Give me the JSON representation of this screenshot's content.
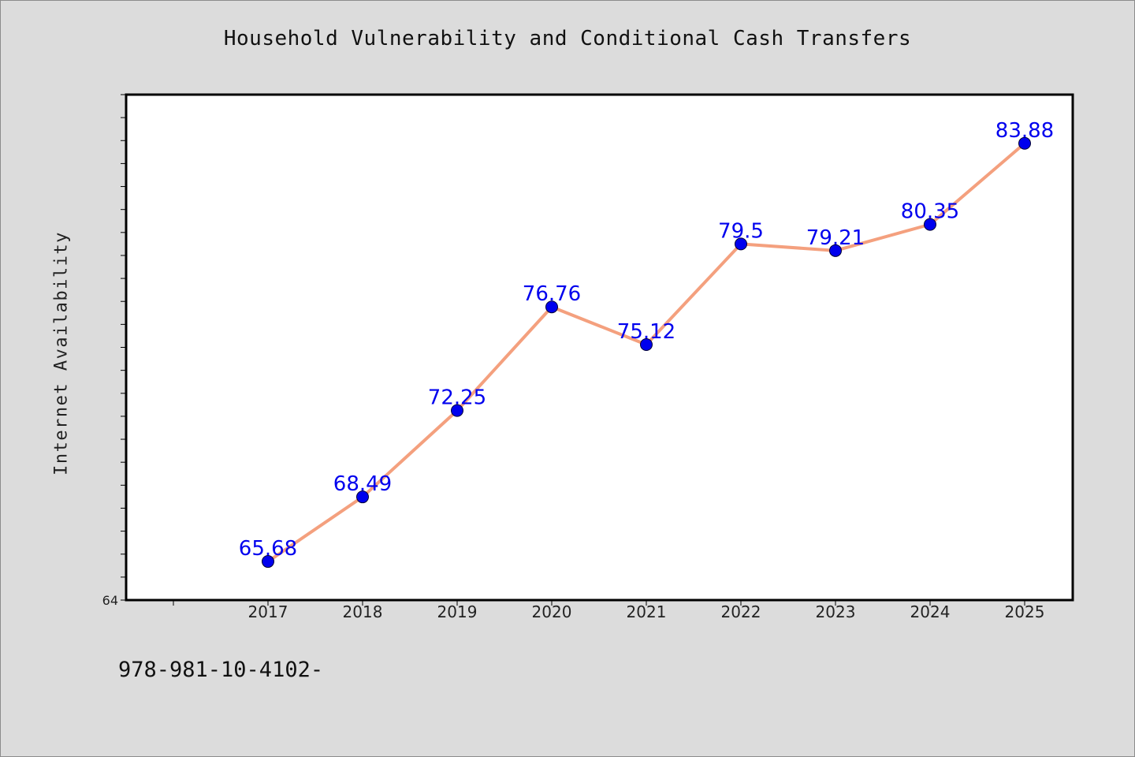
{
  "chart_data": {
    "type": "line",
    "title": "Household Vulnerability and Conditional Cash Transfers",
    "xlabel": "",
    "ylabel": "Internet Availability",
    "categories": [
      "2017",
      "2018",
      "2019",
      "2020",
      "2021",
      "2022",
      "2023",
      "2024",
      "2025"
    ],
    "series": [
      {
        "values": [
          65.68,
          68.49,
          72.25,
          76.76,
          75.12,
          79.5,
          79.21,
          80.35,
          83.88
        ],
        "data_labels": [
          "65.68",
          "68.49",
          "72.25",
          "76.76",
          "75.12",
          "79.5",
          "79.21",
          "80.35",
          "83.88"
        ]
      }
    ],
    "ylim": [
      64,
      86
    ],
    "y_tick_labels": [
      "64"
    ],
    "grid": false,
    "line_color": "#f4a07e",
    "marker_color": "#0000ee",
    "label_color": "#0000ee",
    "plot_background": "#ffffff",
    "figure_background": "#dcdcdc"
  },
  "footnote": "978-981-10-4102-"
}
